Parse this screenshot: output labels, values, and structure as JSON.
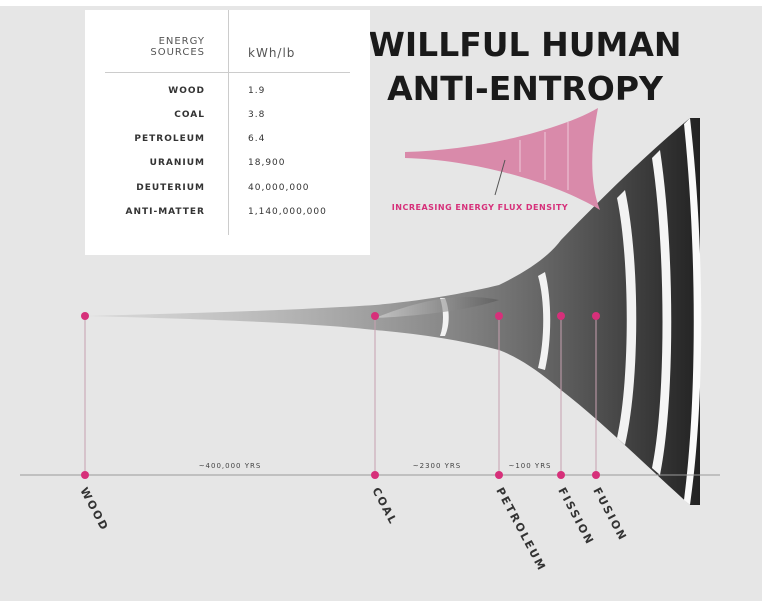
{
  "title": [
    "WILLFUL HUMAN",
    "ANTI-ENTROPY"
  ],
  "table": {
    "header": [
      "ENERGY SOURCES",
      "kWh/lb"
    ],
    "rows": [
      [
        "WOOD",
        "1.9"
      ],
      [
        "COAL",
        "3.8"
      ],
      [
        "PETROLEUM",
        "6.4"
      ],
      [
        "URANIUM",
        "18,900"
      ],
      [
        "DEUTERIUM",
        "40,000,000"
      ],
      [
        "ANTI-MATTER",
        "1,140,000,000"
      ]
    ]
  },
  "legend": "INCREASING ENERGY FLUX DENSITY",
  "periods": [
    "~400,000 YRS",
    "~2300 YRS",
    "~100 YRS"
  ],
  "stages": [
    "WOOD",
    "COAL",
    "PETROLEUM",
    "FISSION",
    "FUSION"
  ]
}
